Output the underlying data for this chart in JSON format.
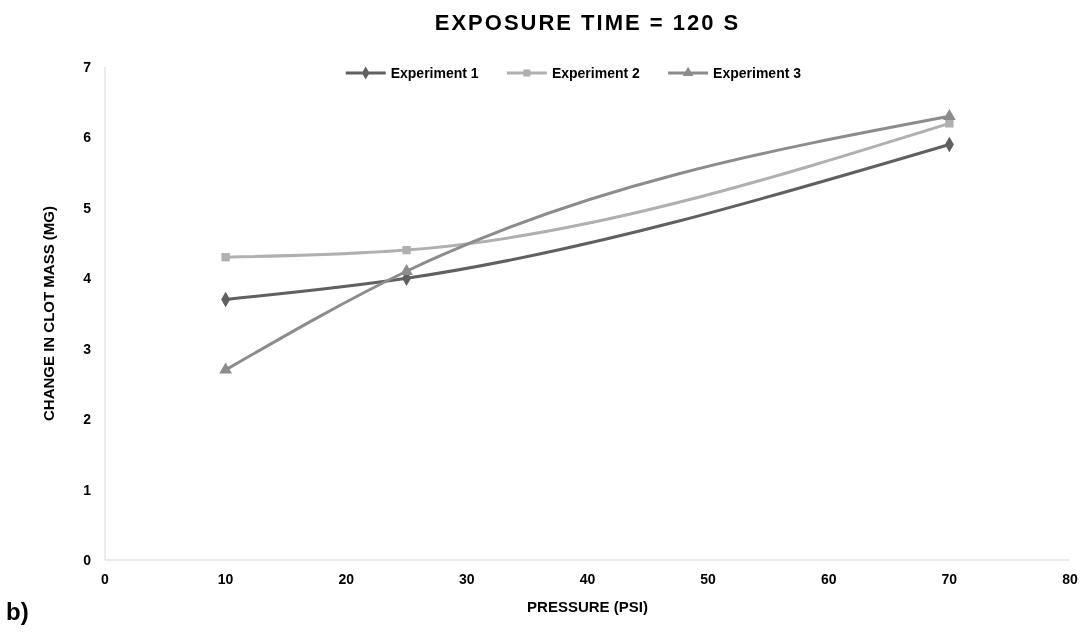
{
  "chart_data": {
    "type": "line",
    "title": "EXPOSURE TIME = 120 S",
    "xlabel": "PRESSURE (PSI)",
    "ylabel": "CHANGE IN CLOT MASS (MG)",
    "annotations": [
      "b)"
    ],
    "x": [
      10,
      25,
      70
    ],
    "series": [
      {
        "name": "Experiment 1",
        "color": "#606060",
        "marker": "diamond",
        "values": [
          3.7,
          4.0,
          5.9
        ]
      },
      {
        "name": "Experiment 2",
        "color": "#b0b0b0",
        "marker": "square",
        "values": [
          4.3,
          4.4,
          6.2
        ]
      },
      {
        "name": "Experiment 3",
        "color": "#8c8c8c",
        "marker": "triangle",
        "values": [
          2.7,
          4.1,
          6.3
        ]
      }
    ],
    "xlim": [
      0,
      80
    ],
    "xticks": [
      0,
      10,
      20,
      30,
      40,
      50,
      60,
      70,
      80
    ],
    "ylim": [
      0,
      7
    ],
    "yticks": [
      0,
      1,
      2,
      3,
      4,
      5,
      6,
      7
    ],
    "grid": false,
    "legend": "top",
    "line_style": "solid"
  }
}
